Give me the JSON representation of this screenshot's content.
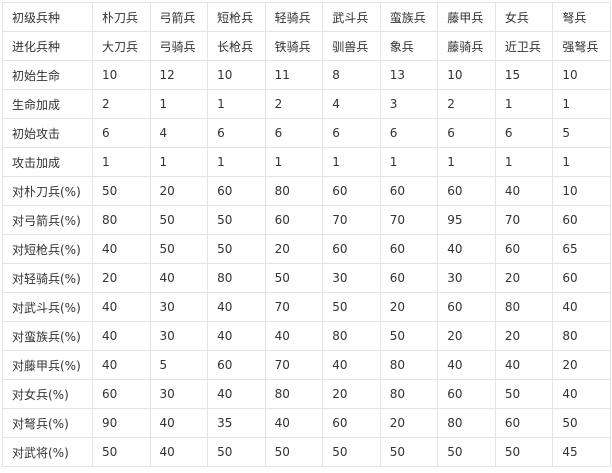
{
  "table": {
    "rows": [
      {
        "label": "初级兵种",
        "cells": [
          "朴刀兵",
          "弓箭兵",
          "短枪兵",
          "轻骑兵",
          "武斗兵",
          "蛮族兵",
          "藤甲兵",
          "女兵",
          "弩兵"
        ]
      },
      {
        "label": "进化兵种",
        "cells": [
          "大刀兵",
          "弓骑兵",
          "长枪兵",
          "铁骑兵",
          "驯兽兵",
          "象兵",
          "藤骑兵",
          "近卫兵",
          "强弩兵"
        ]
      },
      {
        "label": "初始生命",
        "cells": [
          "10",
          "12",
          "10",
          "11",
          "8",
          "13",
          "10",
          "15",
          "10"
        ]
      },
      {
        "label": "生命加成",
        "cells": [
          "2",
          "1",
          "1",
          "2",
          "4",
          "3",
          "2",
          "1",
          "1"
        ]
      },
      {
        "label": "初始攻击",
        "cells": [
          "6",
          "4",
          "6",
          "6",
          "6",
          "6",
          "6",
          "6",
          "5"
        ]
      },
      {
        "label": "攻击加成",
        "cells": [
          "1",
          "1",
          "1",
          "1",
          "1",
          "1",
          "1",
          "1",
          "1"
        ]
      },
      {
        "label": "对朴刀兵(%)",
        "cells": [
          "50",
          "20",
          "60",
          "80",
          "60",
          "60",
          "60",
          "40",
          "10"
        ]
      },
      {
        "label": "对弓箭兵(%)",
        "cells": [
          "80",
          "50",
          "50",
          "60",
          "70",
          "70",
          "95",
          "70",
          "60"
        ]
      },
      {
        "label": "对短枪兵(%)",
        "cells": [
          "40",
          "50",
          "50",
          "20",
          "60",
          "60",
          "40",
          "60",
          "65"
        ]
      },
      {
        "label": "对轻骑兵(%)",
        "cells": [
          "20",
          "40",
          "80",
          "50",
          "30",
          "60",
          "30",
          "20",
          "60"
        ]
      },
      {
        "label": "对武斗兵(%)",
        "cells": [
          "40",
          "30",
          "40",
          "70",
          "50",
          "20",
          "60",
          "80",
          "40"
        ]
      },
      {
        "label": "对蛮族兵(%)",
        "cells": [
          "40",
          "30",
          "40",
          "40",
          "80",
          "50",
          "20",
          "20",
          "80"
        ]
      },
      {
        "label": "对藤甲兵(%)",
        "cells": [
          "40",
          "5",
          "60",
          "70",
          "40",
          "80",
          "40",
          "40",
          "20"
        ]
      },
      {
        "label": "对女兵(%)",
        "cells": [
          "60",
          "30",
          "40",
          "80",
          "20",
          "80",
          "60",
          "50",
          "40"
        ]
      },
      {
        "label": "对弩兵(%)",
        "cells": [
          "90",
          "40",
          "35",
          "40",
          "60",
          "20",
          "80",
          "60",
          "50"
        ]
      },
      {
        "label": "对武将(%)",
        "cells": [
          "50",
          "40",
          "50",
          "50",
          "50",
          "50",
          "50",
          "50",
          "45"
        ]
      }
    ]
  }
}
